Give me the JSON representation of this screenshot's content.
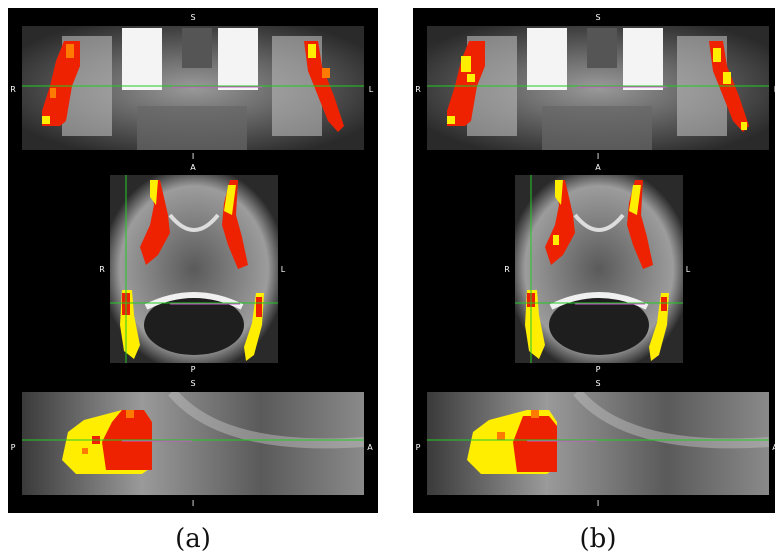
{
  "panels": [
    {
      "id": "a",
      "caption": "(a)",
      "coronal": {
        "top": "S",
        "bottom": "I",
        "left": "R",
        "right": "L"
      },
      "axial": {
        "top": "A",
        "bottom": "P",
        "left": "R",
        "right": "L"
      },
      "sagittal": {
        "top": "S",
        "bottom": "I",
        "left": "P",
        "right": "A"
      }
    },
    {
      "id": "b",
      "caption": "(b)",
      "coronal": {
        "top": "S",
        "bottom": "I",
        "left": "R",
        "right": "L"
      },
      "axial": {
        "top": "A",
        "bottom": "P",
        "left": "R",
        "right": "L"
      },
      "sagittal": {
        "top": "S",
        "bottom": "I",
        "left": "P",
        "right": "A"
      }
    }
  ],
  "colors": {
    "background": "#000000",
    "overlay_red": "#ee2200",
    "overlay_orange": "#ff7a00",
    "overlay_yellow": "#ffee00",
    "crosshair": "#22cc22",
    "crosshair_secondary": "#cc55cc"
  }
}
